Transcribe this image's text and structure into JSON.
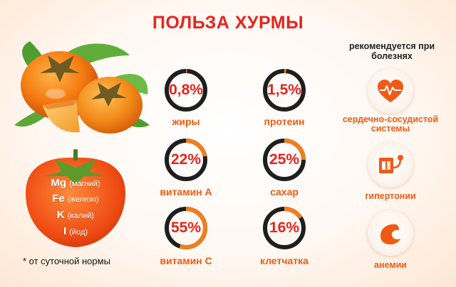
{
  "title": "ПОЛЬЗА ХУРМЫ",
  "nutrients": [
    {
      "value": "0,8%",
      "label": "жиры",
      "fraction": 0.008
    },
    {
      "value": "1,5%",
      "label": "протеин",
      "fraction": 0.015
    },
    {
      "value": "22%",
      "label": "витамин А",
      "fraction": 0.22
    },
    {
      "value": "25%",
      "label": "сахар",
      "fraction": 0.25
    },
    {
      "value": "55%",
      "label": "витамин С",
      "fraction": 0.55
    },
    {
      "value": "16%",
      "label": "клетчатка",
      "fraction": 0.16
    }
  ],
  "minerals": [
    {
      "symbol": "Mg",
      "name": "(магний)"
    },
    {
      "symbol": "Fe",
      "name": "(железо)"
    },
    {
      "symbol": "K",
      "name": "(калий)"
    },
    {
      "symbol": "I",
      "name": "(йод)"
    }
  ],
  "footnote": "* от суточной нормы",
  "recommended_title": "рекомендуется при болезнях",
  "diseases": [
    {
      "label": "сердечно-сосудистой системы",
      "icon": "heart-pulse-icon"
    },
    {
      "label": "гипертонии",
      "icon": "blood-pressure-icon"
    },
    {
      "label": "анемии",
      "icon": "blood-drop-icon"
    }
  ],
  "colors": {
    "accent_red": "#e8231e",
    "accent_orange": "#f05a14",
    "ring_dark": "#1e1e1e",
    "ring_orange": "#f07d1e"
  }
}
